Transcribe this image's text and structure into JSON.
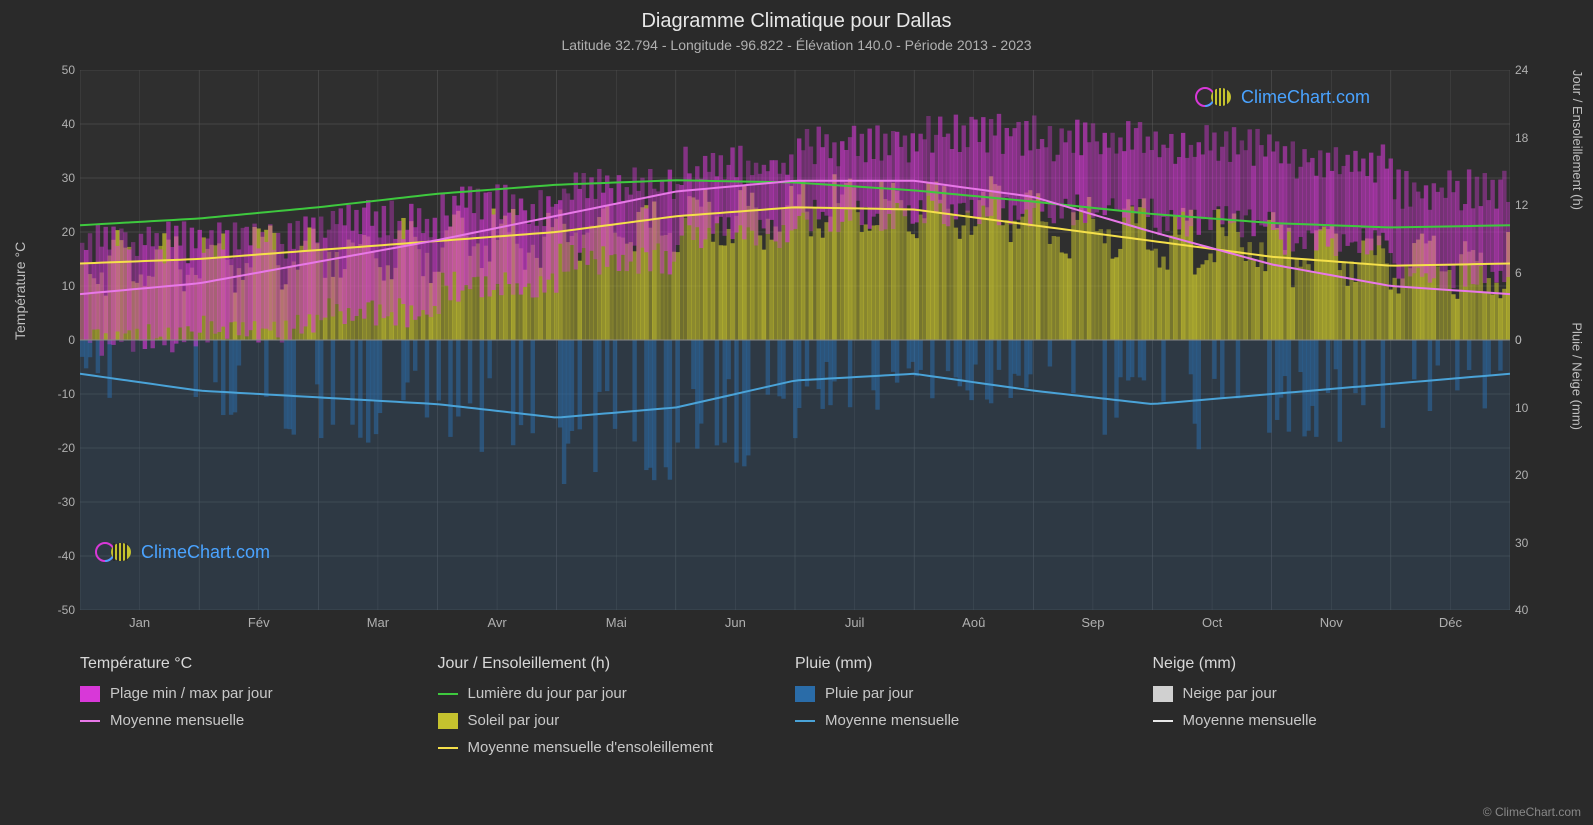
{
  "title": "Diagramme Climatique pour Dallas",
  "subtitle": "Latitude 32.794 - Longitude -96.822 - Élévation 140.0 - Période 2013 - 2023",
  "axis_labels": {
    "left": "Température °C",
    "right_top": "Jour / Ensoleillement (h)",
    "right_bottom": "Pluie / Neige (mm)"
  },
  "chart": {
    "type": "climate_chart",
    "background_color": "#2a2a2a",
    "plot_bg": "#2f2f2f",
    "grid_color": "#5a5a5a",
    "grid_width": 0.5,
    "months": [
      "Jan",
      "Fév",
      "Mar",
      "Avr",
      "Mai",
      "Jun",
      "Juil",
      "Aoû",
      "Sep",
      "Oct",
      "Nov",
      "Déc"
    ],
    "temp_axis": {
      "min": -50,
      "max": 50,
      "step": 10
    },
    "hours_axis": {
      "min": 0,
      "max": 24,
      "step": 6,
      "chart_min_temp": 0,
      "chart_max_temp": 50
    },
    "precip_axis": {
      "min": 0,
      "max": 40,
      "step": 10,
      "chart_min_temp": -50,
      "chart_max_temp": 0
    },
    "series": {
      "daylight": {
        "color": "#3ec93e",
        "width": 2,
        "values": [
          10.2,
          10.8,
          11.8,
          13.0,
          13.8,
          14.2,
          14.0,
          13.3,
          12.3,
          11.2,
          10.4,
          10.0,
          10.2
        ]
      },
      "sunshine_avg": {
        "color": "#f5e04a",
        "width": 2,
        "values": [
          6.8,
          7.2,
          8.0,
          8.8,
          9.6,
          11.0,
          11.8,
          11.6,
          10.2,
          8.8,
          7.4,
          6.6,
          6.8
        ]
      },
      "temp_avg": {
        "color": "#e878e8",
        "width": 2,
        "values": [
          8.5,
          10.5,
          14.5,
          18.5,
          23.0,
          27.5,
          29.5,
          29.5,
          26.5,
          20.0,
          14.0,
          10.0,
          8.5
        ]
      },
      "rain_avg": {
        "color": "#4aa3d8",
        "width": 2,
        "values": [
          5.0,
          7.5,
          8.5,
          9.5,
          11.5,
          10.0,
          6.0,
          5.0,
          7.5,
          9.5,
          8.0,
          6.5,
          5.0
        ]
      },
      "sunshine_bars": {
        "color": "#c5c22e",
        "opacity": 0.7,
        "values": [
          7,
          7.2,
          7.5,
          8,
          8.5,
          9,
          10,
          11.5,
          12,
          11.8,
          11.5,
          10,
          9,
          8,
          7.2,
          6.8,
          7,
          7.2,
          7.5,
          8,
          8.5,
          9,
          10,
          11.5
        ]
      },
      "temp_range_max": {
        "color": "#d838d8",
        "opacity": 0.6,
        "values": [
          18,
          19,
          22,
          25,
          28,
          32,
          36,
          38,
          37,
          36,
          33,
          28,
          22,
          19,
          18
        ]
      },
      "temp_range_min": {
        "color": "#d838d8",
        "opacity": 0.6,
        "values": [
          0,
          2,
          5,
          10,
          15,
          20,
          23,
          24,
          24,
          22,
          18,
          12,
          7,
          3,
          0
        ]
      },
      "rain_bars": {
        "color": "#2a6ca8",
        "opacity": 0.55,
        "max_val": 40
      }
    }
  },
  "legend": {
    "cols": [
      {
        "header": "Température °C",
        "items": [
          {
            "type": "swatch",
            "color": "#d838d8",
            "label": "Plage min / max par jour"
          },
          {
            "type": "line",
            "color": "#e878e8",
            "label": "Moyenne mensuelle"
          }
        ]
      },
      {
        "header": "Jour / Ensoleillement (h)",
        "items": [
          {
            "type": "line",
            "color": "#3ec93e",
            "label": "Lumière du jour par jour"
          },
          {
            "type": "swatch",
            "color": "#c5c22e",
            "label": "Soleil par jour"
          },
          {
            "type": "line",
            "color": "#f5e04a",
            "label": "Moyenne mensuelle d'ensoleillement"
          }
        ]
      },
      {
        "header": "Pluie (mm)",
        "items": [
          {
            "type": "swatch",
            "color": "#2a6ca8",
            "label": "Pluie par jour"
          },
          {
            "type": "line",
            "color": "#4aa3d8",
            "label": "Moyenne mensuelle"
          }
        ]
      },
      {
        "header": "Neige (mm)",
        "items": [
          {
            "type": "swatch",
            "color": "#d0d0d0",
            "label": "Neige par jour"
          },
          {
            "type": "line",
            "color": "#e8e8e8",
            "label": "Moyenne mensuelle"
          }
        ]
      }
    ]
  },
  "watermark": "ClimeChart.com",
  "copyright": "© ClimeChart.com"
}
